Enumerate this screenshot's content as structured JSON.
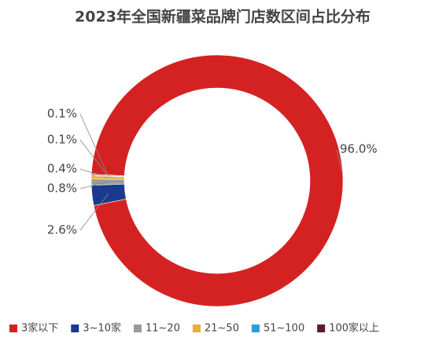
{
  "chart_data": {
    "type": "donut",
    "title": "2023年全国新疆菜品牌门店数区间占比分布",
    "categories": [
      "3家以下",
      "3~10家",
      "11~20",
      "21~50",
      "51~100",
      "100家以上"
    ],
    "values": [
      96.0,
      2.6,
      0.8,
      0.4,
      0.1,
      0.1
    ],
    "value_labels": [
      "96.0%",
      "2.6%",
      "0.8%",
      "0.4%",
      "0.1%",
      "0.1%"
    ],
    "colors": [
      "#d42222",
      "#1b3a8f",
      "#9a9a9a",
      "#e6ae3c",
      "#2b9fd4",
      "#5c1a2c"
    ],
    "legend": "bottom"
  }
}
